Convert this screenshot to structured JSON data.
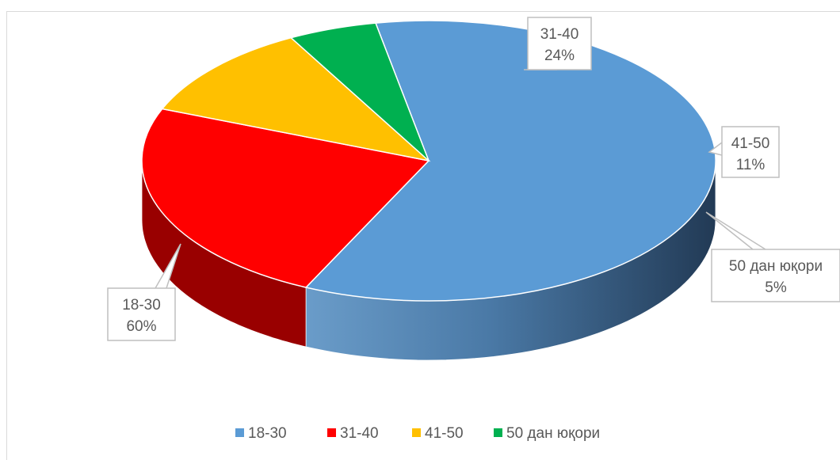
{
  "chart_data": {
    "type": "pie",
    "style": "3d",
    "title": "",
    "legend_position": "bottom",
    "series": [
      {
        "name": "18-30",
        "value": 60,
        "label_pct": "60%",
        "color": "#5b9bd5"
      },
      {
        "name": "31-40",
        "value": 24,
        "label_pct": "24%",
        "color": "#ff0000"
      },
      {
        "name": "41-50",
        "value": 11,
        "label_pct": "11%",
        "color": "#ffc000"
      },
      {
        "name": "50 дан юқори",
        "value": 5,
        "label_pct": "5%",
        "color": "#00b050"
      }
    ]
  }
}
